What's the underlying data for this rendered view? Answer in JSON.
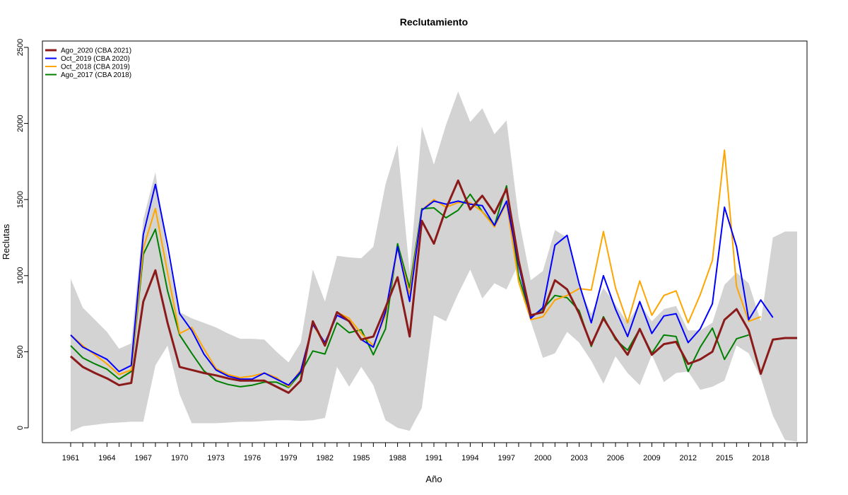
{
  "chart_data": {
    "type": "line",
    "title": "Reclutamiento",
    "xlabel": "Año",
    "ylabel": "Reclutas",
    "xlim": [
      1961,
      2021
    ],
    "ylim": [
      0,
      2500
    ],
    "x_tick_labels": [
      "1961",
      "1964",
      "1967",
      "1970",
      "1973",
      "1976",
      "1979",
      "1982",
      "1985",
      "1988",
      "1991",
      "1994",
      "1997",
      "2000",
      "2003",
      "2006",
      "2009",
      "2012",
      "2015",
      "2018"
    ],
    "y_ticks": [
      0,
      500,
      1000,
      1500,
      2000,
      2500
    ],
    "grid": false,
    "legend_position": "top-left",
    "band": {
      "color": "#d3d3d3",
      "x": [
        1961,
        1962,
        1963,
        1964,
        1965,
        1966,
        1967,
        1968,
        1969,
        1970,
        1971,
        1972,
        1973,
        1974,
        1975,
        1976,
        1977,
        1978,
        1979,
        1980,
        1981,
        1982,
        1983,
        1984,
        1985,
        1986,
        1987,
        1988,
        1989,
        1990,
        1991,
        1992,
        1993,
        1994,
        1995,
        1996,
        1997,
        1998,
        1999,
        2000,
        2001,
        2002,
        2003,
        2004,
        2005,
        2006,
        2007,
        2008,
        2009,
        2010,
        2011,
        2012,
        2013,
        2014,
        2015,
        2016,
        2017,
        2018,
        2019,
        2020,
        2021
      ],
      "upper": [
        980,
        790,
        710,
        630,
        520,
        555,
        1370,
        1680,
        1140,
        760,
        720,
        690,
        660,
        620,
        585,
        585,
        580,
        500,
        430,
        560,
        1040,
        830,
        1130,
        1120,
        1115,
        1190,
        1600,
        1860,
        1020,
        1980,
        1730,
        1990,
        2210,
        2010,
        2100,
        1930,
        2020,
        1380,
        970,
        1030,
        1300,
        1250,
        920,
        750,
        920,
        810,
        690,
        820,
        700,
        780,
        800,
        640,
        640,
        690,
        940,
        1020,
        950,
        700,
        1250,
        1290,
        1290
      ],
      "lower": [
        -25,
        10,
        20,
        30,
        35,
        40,
        40,
        410,
        540,
        220,
        30,
        30,
        30,
        35,
        40,
        40,
        45,
        50,
        50,
        45,
        50,
        65,
        400,
        270,
        400,
        280,
        50,
        0,
        -20,
        130,
        740,
        700,
        880,
        1040,
        850,
        950,
        910,
        1080,
        700,
        460,
        490,
        630,
        560,
        440,
        290,
        470,
        360,
        280,
        480,
        300,
        360,
        370,
        250,
        270,
        310,
        540,
        490,
        330,
        80,
        -80,
        -90
      ]
    },
    "x": [
      1961,
      1962,
      1963,
      1964,
      1965,
      1966,
      1967,
      1968,
      1969,
      1970,
      1971,
      1972,
      1973,
      1974,
      1975,
      1976,
      1977,
      1978,
      1979,
      1980,
      1981,
      1982,
      1983,
      1984,
      1985,
      1986,
      1987,
      1988,
      1989,
      1990,
      1991,
      1992,
      1993,
      1994,
      1995,
      1996,
      1997,
      1998,
      1999,
      2000,
      2001,
      2002,
      2003,
      2004,
      2005,
      2006,
      2007,
      2008,
      2009,
      2010,
      2011,
      2012,
      2013,
      2014,
      2015,
      2016,
      2017,
      2018,
      2019,
      2020,
      2021
    ],
    "series": [
      {
        "name": "Ago_2020 (CBA 2021)",
        "color": "#8b1a1a",
        "width": 3,
        "values": [
          470,
          400,
          360,
          325,
          280,
          295,
          830,
          1035,
          690,
          400,
          380,
          360,
          345,
          325,
          310,
          310,
          310,
          270,
          230,
          310,
          700,
          540,
          760,
          700,
          580,
          600,
          790,
          990,
          600,
          1360,
          1210,
          1440,
          1625,
          1435,
          1525,
          1410,
          1570,
          1100,
          740,
          760,
          970,
          910,
          750,
          545,
          720,
          590,
          480,
          650,
          480,
          550,
          565,
          420,
          450,
          500,
          710,
          780,
          640,
          355,
          580,
          590,
          590
        ]
      },
      {
        "name": "Oct_2019 (CBA 2020)",
        "color": "#0000ff",
        "width": 2,
        "values": [
          610,
          530,
          490,
          450,
          370,
          410,
          1270,
          1600,
          1200,
          750,
          640,
          485,
          380,
          340,
          320,
          320,
          360,
          320,
          280,
          370,
          680,
          560,
          740,
          700,
          580,
          530,
          760,
          1190,
          830,
          1430,
          1490,
          1470,
          1490,
          1470,
          1460,
          1330,
          1490,
          1070,
          720,
          790,
          1200,
          1265,
          945,
          690,
          1000,
          780,
          600,
          830,
          620,
          735,
          750,
          560,
          650,
          815,
          1450,
          1190,
          710,
          840,
          725,
          null,
          null
        ]
      },
      {
        "name": "Oct_2018 (CBA 2019)",
        "color": "#ffa500",
        "width": 2,
        "values": [
          610,
          540,
          480,
          420,
          350,
          380,
          1180,
          1440,
          1020,
          620,
          660,
          520,
          390,
          350,
          330,
          340,
          360,
          330,
          270,
          380,
          680,
          545,
          760,
          720,
          620,
          540,
          740,
          1185,
          880,
          1430,
          1500,
          1450,
          1480,
          1480,
          1420,
          1320,
          1480,
          960,
          710,
          730,
          840,
          870,
          915,
          905,
          1290,
          920,
          690,
          965,
          740,
          870,
          900,
          690,
          875,
          1100,
          1825,
          930,
          700,
          730,
          null,
          null,
          null
        ]
      },
      {
        "name": "Ago_2017 (CBA 2018)",
        "color": "#008000",
        "width": 2,
        "values": [
          540,
          460,
          420,
          385,
          320,
          370,
          1140,
          1305,
          900,
          610,
          490,
          375,
          310,
          285,
          270,
          280,
          300,
          300,
          265,
          360,
          505,
          485,
          690,
          625,
          645,
          480,
          650,
          1210,
          920,
          1440,
          1445,
          1380,
          1430,
          1535,
          1420,
          1330,
          1590,
          1000,
          730,
          780,
          870,
          855,
          770,
          535,
          730,
          580,
          510,
          650,
          490,
          610,
          600,
          370,
          530,
          655,
          450,
          585,
          610,
          null,
          null,
          null,
          null
        ]
      }
    ]
  }
}
